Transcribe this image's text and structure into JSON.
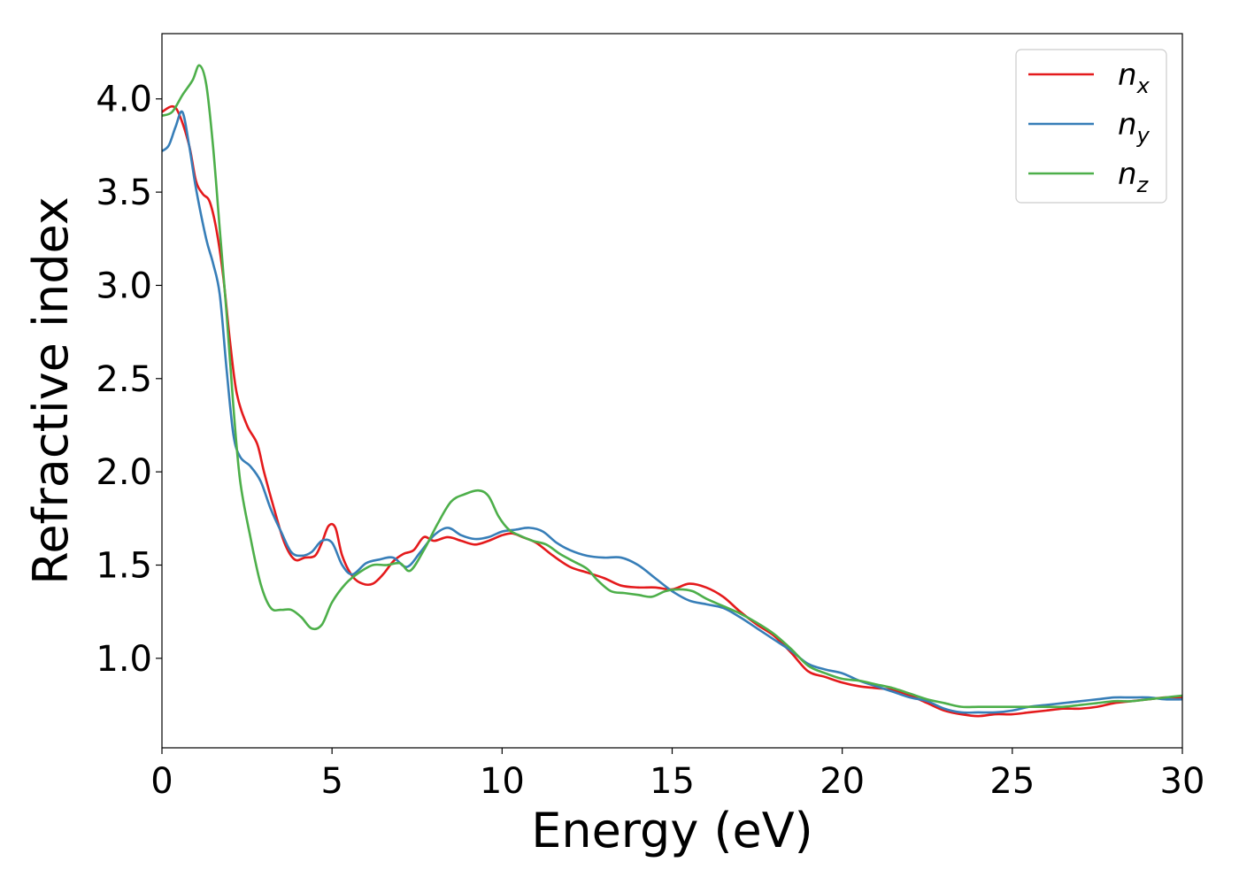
{
  "chart_data": {
    "type": "line",
    "title": "",
    "xlabel": "Energy (eV)",
    "ylabel": "Refractive index",
    "xlim": [
      0,
      30
    ],
    "ylim": [
      0.52,
      4.35
    ],
    "xticks": [
      0,
      5,
      10,
      15,
      20,
      25,
      30
    ],
    "yticks": [
      1.0,
      1.5,
      2.0,
      2.5,
      3.0,
      3.5,
      4.0
    ],
    "xtick_labels": [
      "0",
      "5",
      "10",
      "15",
      "20",
      "25",
      "30"
    ],
    "ytick_labels": [
      "1.0",
      "1.5",
      "2.0",
      "2.5",
      "3.0",
      "3.5",
      "4.0"
    ],
    "grid": false,
    "legend": "top-right",
    "series": [
      {
        "name": "n",
        "subscript": "x",
        "color": "#e41a1c",
        "points": [
          [
            0,
            3.93
          ],
          [
            0.3,
            3.96
          ],
          [
            0.5,
            3.92
          ],
          [
            0.8,
            3.75
          ],
          [
            1.0,
            3.56
          ],
          [
            1.2,
            3.49
          ],
          [
            1.4,
            3.45
          ],
          [
            1.6,
            3.3
          ],
          [
            1.8,
            3.05
          ],
          [
            2.0,
            2.7
          ],
          [
            2.2,
            2.42
          ],
          [
            2.5,
            2.25
          ],
          [
            2.8,
            2.15
          ],
          [
            3.0,
            2.0
          ],
          [
            3.3,
            1.8
          ],
          [
            3.6,
            1.62
          ],
          [
            3.9,
            1.53
          ],
          [
            4.2,
            1.54
          ],
          [
            4.5,
            1.55
          ],
          [
            4.7,
            1.62
          ],
          [
            4.9,
            1.71
          ],
          [
            5.1,
            1.7
          ],
          [
            5.3,
            1.55
          ],
          [
            5.6,
            1.44
          ],
          [
            5.9,
            1.4
          ],
          [
            6.2,
            1.4
          ],
          [
            6.5,
            1.45
          ],
          [
            6.8,
            1.52
          ],
          [
            7.1,
            1.56
          ],
          [
            7.4,
            1.58
          ],
          [
            7.7,
            1.65
          ],
          [
            8.0,
            1.63
          ],
          [
            8.4,
            1.65
          ],
          [
            8.8,
            1.63
          ],
          [
            9.2,
            1.61
          ],
          [
            9.6,
            1.63
          ],
          [
            10.0,
            1.66
          ],
          [
            10.3,
            1.67
          ],
          [
            10.6,
            1.65
          ],
          [
            11.0,
            1.62
          ],
          [
            11.5,
            1.55
          ],
          [
            12.0,
            1.49
          ],
          [
            12.5,
            1.46
          ],
          [
            13.0,
            1.43
          ],
          [
            13.5,
            1.39
          ],
          [
            14.0,
            1.38
          ],
          [
            14.5,
            1.38
          ],
          [
            15.0,
            1.37
          ],
          [
            15.5,
            1.4
          ],
          [
            16.0,
            1.38
          ],
          [
            16.5,
            1.33
          ],
          [
            17.0,
            1.25
          ],
          [
            17.5,
            1.18
          ],
          [
            18.0,
            1.12
          ],
          [
            18.5,
            1.03
          ],
          [
            19.0,
            0.93
          ],
          [
            19.5,
            0.9
          ],
          [
            20.0,
            0.87
          ],
          [
            20.5,
            0.85
          ],
          [
            21.0,
            0.84
          ],
          [
            21.5,
            0.83
          ],
          [
            22.0,
            0.8
          ],
          [
            22.5,
            0.76
          ],
          [
            23.0,
            0.72
          ],
          [
            23.5,
            0.7
          ],
          [
            24.0,
            0.69
          ],
          [
            24.5,
            0.7
          ],
          [
            25.0,
            0.7
          ],
          [
            25.5,
            0.71
          ],
          [
            26.0,
            0.72
          ],
          [
            26.5,
            0.73
          ],
          [
            27.0,
            0.73
          ],
          [
            27.5,
            0.74
          ],
          [
            28.0,
            0.76
          ],
          [
            28.5,
            0.77
          ],
          [
            29.0,
            0.78
          ],
          [
            29.5,
            0.79
          ],
          [
            30.0,
            0.79
          ]
        ]
      },
      {
        "name": "n",
        "subscript": "y",
        "color": "#377eb8",
        "points": [
          [
            0,
            3.72
          ],
          [
            0.2,
            3.75
          ],
          [
            0.4,
            3.85
          ],
          [
            0.6,
            3.93
          ],
          [
            0.8,
            3.75
          ],
          [
            1.0,
            3.52
          ],
          [
            1.3,
            3.25
          ],
          [
            1.5,
            3.12
          ],
          [
            1.7,
            2.95
          ],
          [
            1.9,
            2.55
          ],
          [
            2.1,
            2.2
          ],
          [
            2.3,
            2.08
          ],
          [
            2.6,
            2.03
          ],
          [
            2.9,
            1.95
          ],
          [
            3.2,
            1.8
          ],
          [
            3.5,
            1.68
          ],
          [
            3.8,
            1.57
          ],
          [
            4.1,
            1.55
          ],
          [
            4.4,
            1.57
          ],
          [
            4.7,
            1.63
          ],
          [
            5.0,
            1.62
          ],
          [
            5.3,
            1.5
          ],
          [
            5.6,
            1.45
          ],
          [
            6.0,
            1.51
          ],
          [
            6.4,
            1.53
          ],
          [
            6.8,
            1.54
          ],
          [
            7.2,
            1.49
          ],
          [
            7.6,
            1.57
          ],
          [
            8.0,
            1.66
          ],
          [
            8.4,
            1.7
          ],
          [
            8.8,
            1.66
          ],
          [
            9.2,
            1.64
          ],
          [
            9.6,
            1.65
          ],
          [
            10.0,
            1.68
          ],
          [
            10.4,
            1.69
          ],
          [
            10.8,
            1.7
          ],
          [
            11.2,
            1.68
          ],
          [
            11.6,
            1.62
          ],
          [
            12.0,
            1.58
          ],
          [
            12.5,
            1.55
          ],
          [
            13.0,
            1.54
          ],
          [
            13.5,
            1.54
          ],
          [
            14.0,
            1.5
          ],
          [
            14.5,
            1.43
          ],
          [
            15.0,
            1.36
          ],
          [
            15.5,
            1.31
          ],
          [
            16.0,
            1.29
          ],
          [
            16.5,
            1.27
          ],
          [
            17.0,
            1.22
          ],
          [
            17.5,
            1.16
          ],
          [
            18.0,
            1.1
          ],
          [
            18.5,
            1.04
          ],
          [
            19.0,
            0.97
          ],
          [
            19.5,
            0.94
          ],
          [
            20.0,
            0.92
          ],
          [
            20.5,
            0.88
          ],
          [
            21.0,
            0.85
          ],
          [
            21.5,
            0.82
          ],
          [
            22.0,
            0.79
          ],
          [
            22.5,
            0.77
          ],
          [
            23.0,
            0.73
          ],
          [
            23.5,
            0.71
          ],
          [
            24.0,
            0.71
          ],
          [
            24.5,
            0.71
          ],
          [
            25.0,
            0.72
          ],
          [
            25.5,
            0.74
          ],
          [
            26.0,
            0.75
          ],
          [
            26.5,
            0.76
          ],
          [
            27.0,
            0.77
          ],
          [
            27.5,
            0.78
          ],
          [
            28.0,
            0.79
          ],
          [
            28.5,
            0.79
          ],
          [
            29.0,
            0.79
          ],
          [
            29.5,
            0.78
          ],
          [
            30.0,
            0.78
          ]
        ]
      },
      {
        "name": "n",
        "subscript": "z",
        "color": "#4daf4a",
        "points": [
          [
            0,
            3.91
          ],
          [
            0.3,
            3.93
          ],
          [
            0.6,
            4.02
          ],
          [
            0.9,
            4.1
          ],
          [
            1.1,
            4.18
          ],
          [
            1.3,
            4.08
          ],
          [
            1.5,
            3.75
          ],
          [
            1.7,
            3.3
          ],
          [
            1.9,
            2.85
          ],
          [
            2.1,
            2.35
          ],
          [
            2.3,
            1.95
          ],
          [
            2.6,
            1.65
          ],
          [
            2.9,
            1.4
          ],
          [
            3.2,
            1.27
          ],
          [
            3.5,
            1.26
          ],
          [
            3.8,
            1.26
          ],
          [
            4.1,
            1.22
          ],
          [
            4.4,
            1.16
          ],
          [
            4.7,
            1.18
          ],
          [
            5.0,
            1.3
          ],
          [
            5.4,
            1.4
          ],
          [
            5.8,
            1.46
          ],
          [
            6.2,
            1.5
          ],
          [
            6.6,
            1.5
          ],
          [
            7.0,
            1.51
          ],
          [
            7.3,
            1.47
          ],
          [
            7.7,
            1.58
          ],
          [
            8.1,
            1.72
          ],
          [
            8.5,
            1.84
          ],
          [
            8.9,
            1.88
          ],
          [
            9.3,
            1.9
          ],
          [
            9.6,
            1.87
          ],
          [
            9.9,
            1.76
          ],
          [
            10.2,
            1.69
          ],
          [
            10.5,
            1.66
          ],
          [
            10.9,
            1.63
          ],
          [
            11.3,
            1.61
          ],
          [
            11.7,
            1.56
          ],
          [
            12.1,
            1.52
          ],
          [
            12.5,
            1.48
          ],
          [
            12.8,
            1.42
          ],
          [
            13.2,
            1.36
          ],
          [
            13.6,
            1.35
          ],
          [
            14.0,
            1.34
          ],
          [
            14.4,
            1.33
          ],
          [
            14.8,
            1.36
          ],
          [
            15.2,
            1.37
          ],
          [
            15.6,
            1.36
          ],
          [
            16.0,
            1.32
          ],
          [
            16.5,
            1.28
          ],
          [
            17.0,
            1.24
          ],
          [
            17.5,
            1.19
          ],
          [
            18.0,
            1.13
          ],
          [
            18.5,
            1.05
          ],
          [
            19.0,
            0.96
          ],
          [
            19.5,
            0.92
          ],
          [
            20.0,
            0.89
          ],
          [
            20.5,
            0.88
          ],
          [
            21.0,
            0.86
          ],
          [
            21.5,
            0.84
          ],
          [
            22.0,
            0.81
          ],
          [
            22.5,
            0.78
          ],
          [
            23.0,
            0.76
          ],
          [
            23.5,
            0.74
          ],
          [
            24.0,
            0.74
          ],
          [
            24.5,
            0.74
          ],
          [
            25.0,
            0.74
          ],
          [
            25.5,
            0.74
          ],
          [
            26.0,
            0.74
          ],
          [
            26.5,
            0.74
          ],
          [
            27.0,
            0.75
          ],
          [
            27.5,
            0.76
          ],
          [
            28.0,
            0.77
          ],
          [
            28.5,
            0.77
          ],
          [
            29.0,
            0.78
          ],
          [
            29.5,
            0.79
          ],
          [
            30.0,
            0.8
          ]
        ]
      }
    ]
  }
}
